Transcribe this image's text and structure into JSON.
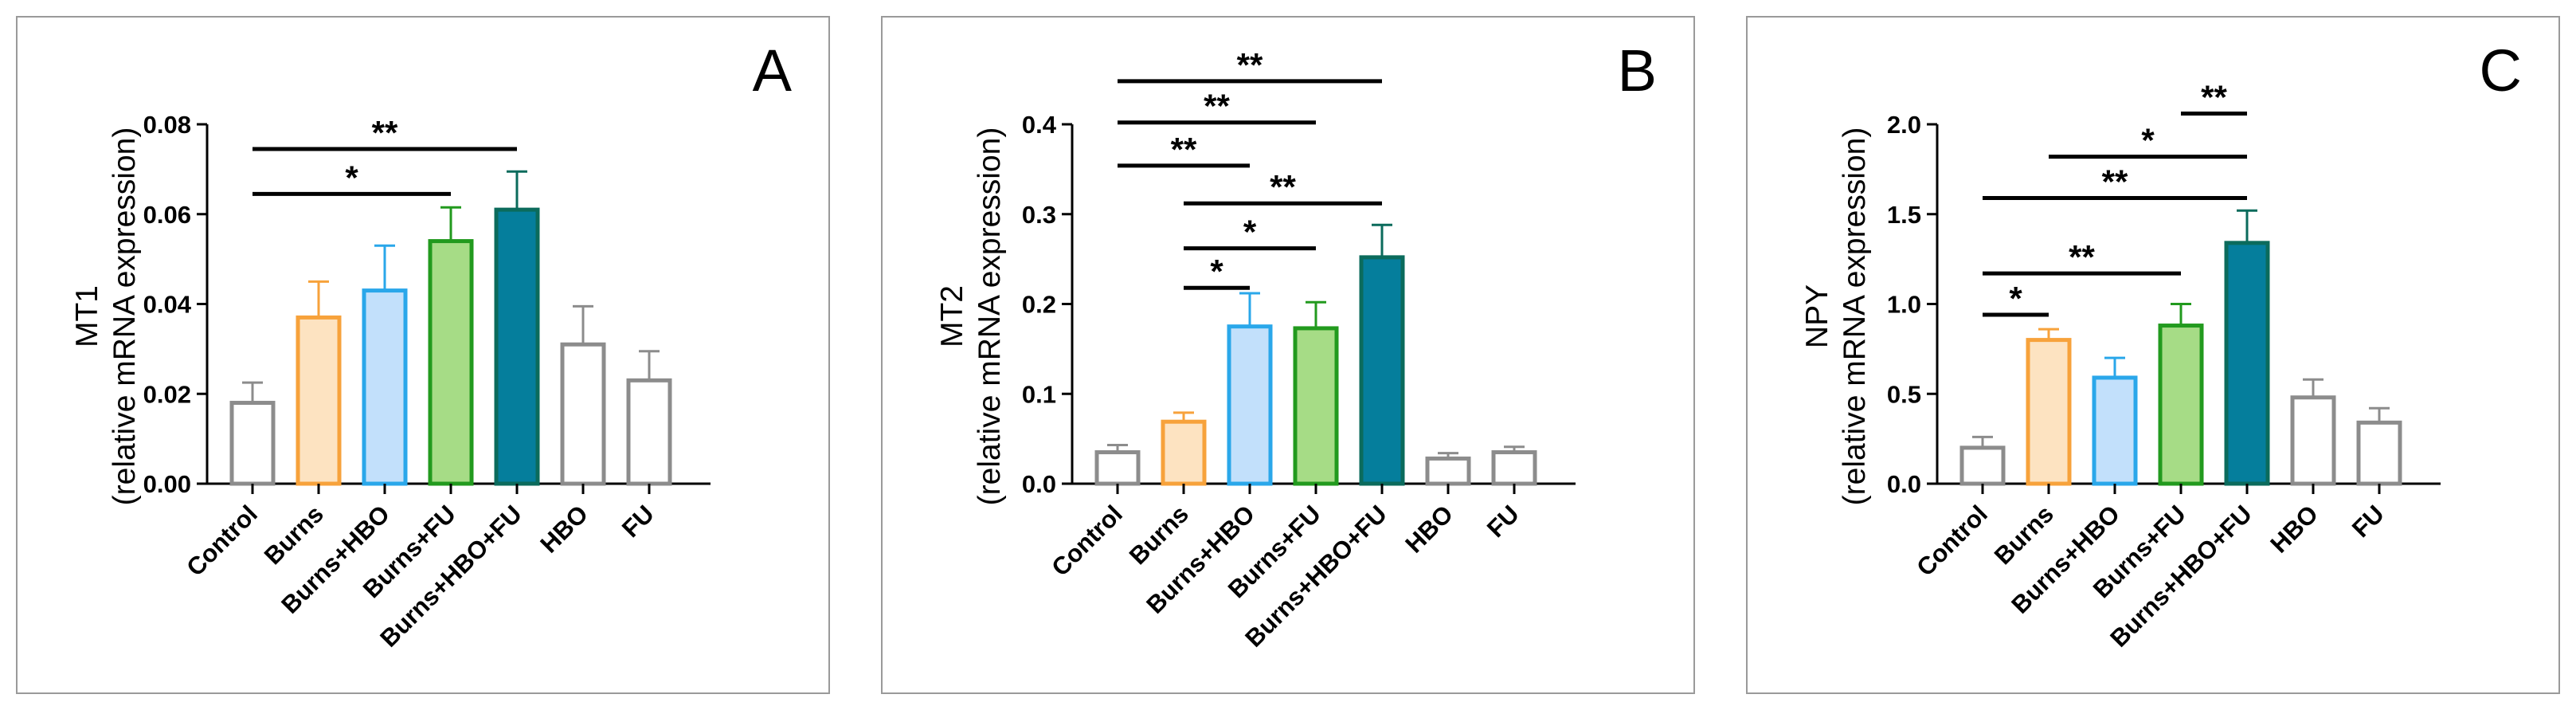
{
  "chart_data": [
    {
      "type": "bar",
      "panel_letter": "A",
      "ylabel_main": "MT1",
      "ylabel_sub": "(relative mRNA expression)",
      "categories": [
        "Control",
        "Burns",
        "Burns+HBO",
        "Burns+FU",
        "Burns+HBO+FU",
        "HBO",
        "FU"
      ],
      "values": [
        0.018,
        0.037,
        0.043,
        0.054,
        0.061,
        0.031,
        0.023
      ],
      "errors": [
        0.0045,
        0.008,
        0.01,
        0.0075,
        0.0085,
        0.0085,
        0.0065
      ],
      "ylim": [
        0,
        0.08
      ],
      "ticks": [
        {
          "v": 0,
          "label": "0.00"
        },
        {
          "v": 0.02,
          "label": "0.02"
        },
        {
          "v": 0.04,
          "label": "0.04"
        },
        {
          "v": 0.06,
          "label": "0.06"
        },
        {
          "v": 0.08,
          "label": "0.08"
        }
      ],
      "significance": [
        {
          "from": "Control",
          "to": "Burns+FU",
          "y": 0.0645,
          "label": "*"
        },
        {
          "from": "Control",
          "to": "Burns+HBO+FU",
          "y": 0.0745,
          "label": "**"
        }
      ]
    },
    {
      "type": "bar",
      "panel_letter": "B",
      "ylabel_main": "MT2",
      "ylabel_sub": "(relative mRNA expression)",
      "categories": [
        "Control",
        "Burns",
        "Burns+HBO",
        "Burns+FU",
        "Burns+HBO+FU",
        "HBO",
        "FU"
      ],
      "values": [
        0.035,
        0.069,
        0.175,
        0.173,
        0.252,
        0.028,
        0.035
      ],
      "errors": [
        0.008,
        0.01,
        0.037,
        0.029,
        0.036,
        0.006,
        0.006
      ],
      "ylim": [
        0,
        0.4
      ],
      "ticks": [
        {
          "v": 0,
          "label": "0.0"
        },
        {
          "v": 0.1,
          "label": "0.1"
        },
        {
          "v": 0.2,
          "label": "0.2"
        },
        {
          "v": 0.3,
          "label": "0.3"
        },
        {
          "v": 0.4,
          "label": "0.4"
        }
      ],
      "significance": [
        {
          "from": "Burns",
          "to": "Burns+HBO",
          "y": 0.218,
          "label": "*"
        },
        {
          "from": "Burns",
          "to": "Burns+FU",
          "y": 0.262,
          "label": "*"
        },
        {
          "from": "Burns",
          "to": "Burns+HBO+FU",
          "y": 0.312,
          "label": "**"
        },
        {
          "from": "Control",
          "to": "Burns+HBO",
          "y": 0.354,
          "label": "**"
        },
        {
          "from": "Control",
          "to": "Burns+FU",
          "y": 0.402,
          "label": "**"
        },
        {
          "from": "Control",
          "to": "Burns+HBO+FU",
          "y": 0.448,
          "label": "**"
        }
      ]
    },
    {
      "type": "bar",
      "panel_letter": "C",
      "ylabel_main": "NPY",
      "ylabel_sub": "(relative mRNA expression)",
      "categories": [
        "Control",
        "Burns",
        "Burns+HBO",
        "Burns+FU",
        "Burns+HBO+FU",
        "HBO",
        "FU"
      ],
      "values": [
        0.2,
        0.8,
        0.59,
        0.88,
        1.34,
        0.48,
        0.34
      ],
      "errors": [
        0.06,
        0.06,
        0.11,
        0.12,
        0.18,
        0.1,
        0.08
      ],
      "ylim": [
        0,
        2.0
      ],
      "ticks": [
        {
          "v": 0,
          "label": "0.0"
        },
        {
          "v": 0.5,
          "label": "0.5"
        },
        {
          "v": 1.0,
          "label": "1.0"
        },
        {
          "v": 1.5,
          "label": "1.5"
        },
        {
          "v": 2.0,
          "label": "2.0"
        }
      ],
      "significance": [
        {
          "from": "Control",
          "to": "Burns",
          "y": 0.94,
          "label": "*"
        },
        {
          "from": "Control",
          "to": "Burns+FU",
          "y": 1.17,
          "label": "**"
        },
        {
          "from": "Control",
          "to": "Burns+HBO+FU",
          "y": 1.59,
          "label": "**"
        },
        {
          "from": "Burns",
          "to": "Burns+HBO+FU",
          "y": 1.82,
          "label": "*"
        },
        {
          "from": "Burns+FU",
          "to": "Burns+HBO+FU",
          "y": 2.06,
          "label": "**"
        }
      ]
    }
  ],
  "styles": {
    "edge_colors": [
      "#8c8c8c",
      "#f7a23b",
      "#2aa7ea",
      "#229a1e",
      "#0b6b5c",
      "#8c8c8c",
      "#8c8c8c"
    ],
    "fill_colors": [
      "#ffffff",
      "#fde3c1",
      "#c2e0fb",
      "#a6dc86",
      "#057e9c",
      "#ffffff",
      "#ffffff"
    ],
    "axis_color": "#000000",
    "panel_border": "#9a9a9a"
  }
}
